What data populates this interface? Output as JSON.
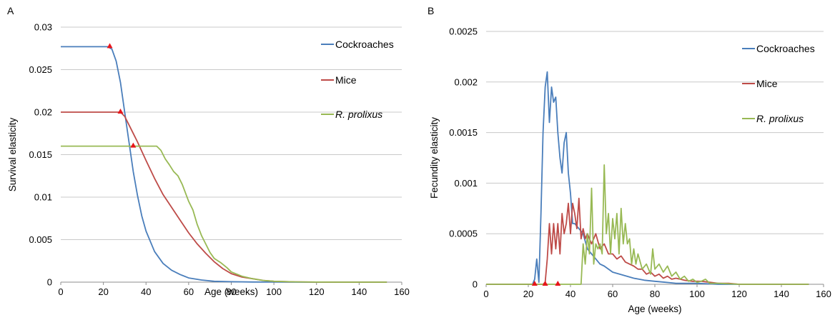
{
  "chart_data": [
    {
      "panel": "A",
      "type": "line",
      "xlabel": "Age (weeks)",
      "ylabel": "Survival elasticity",
      "xlim": [
        0,
        160
      ],
      "ylim": [
        0,
        0.03
      ],
      "xticks": [
        0,
        20,
        40,
        60,
        80,
        100,
        120,
        140,
        160
      ],
      "yticks": [
        0,
        0.005,
        0.01,
        0.015,
        0.02,
        0.025,
        0.03
      ],
      "ytick_labels": [
        "0",
        "0.005",
        "0.01",
        "0.015",
        "0.02",
        "0.025",
        "0.03"
      ],
      "grid": "horizontal",
      "legend_position": "right",
      "series": [
        {
          "name": "Cockroaches",
          "italic": false,
          "color": "#4a7ebb",
          "x": [
            0,
            22,
            24,
            26,
            28,
            30,
            32,
            34,
            36,
            38,
            40,
            44,
            48,
            52,
            56,
            60,
            66,
            72,
            80,
            90,
            100,
            110,
            120,
            130,
            140,
            153
          ],
          "y": [
            0.0277,
            0.0277,
            0.0274,
            0.026,
            0.0235,
            0.02,
            0.0165,
            0.013,
            0.0102,
            0.0078,
            0.006,
            0.0036,
            0.0022,
            0.0014,
            0.0009,
            0.0005,
            0.00025,
            0.0001,
            5e-05,
            2e-05,
            1e-05,
            0,
            0,
            0,
            0,
            0
          ],
          "marker": {
            "x": 23,
            "y": 0.0277
          }
        },
        {
          "name": "Mice",
          "italic": false,
          "color": "#be4b48",
          "x": [
            0,
            28,
            30,
            32,
            34,
            36,
            40,
            44,
            48,
            52,
            56,
            60,
            64,
            68,
            72,
            76,
            80,
            85,
            90,
            95,
            100,
            110,
            120,
            130,
            140,
            153
          ],
          "y": [
            0.02,
            0.02,
            0.0195,
            0.0185,
            0.0175,
            0.0165,
            0.0143,
            0.0122,
            0.0103,
            0.0088,
            0.0073,
            0.0058,
            0.0045,
            0.0034,
            0.0024,
            0.0016,
            0.001,
            0.0006,
            0.0004,
            0.0002,
            0.0001,
            3e-05,
            1e-05,
            0,
            0,
            0
          ],
          "marker": {
            "x": 28,
            "y": 0.02
          }
        },
        {
          "name": "R. prolixus",
          "italic": true,
          "color": "#98b954",
          "x": [
            0,
            45,
            47,
            49,
            51,
            53,
            55,
            57,
            60,
            62,
            64,
            66,
            68,
            70,
            72,
            75,
            78,
            80,
            85,
            90,
            95,
            100,
            110,
            120,
            130,
            140,
            153
          ],
          "y": [
            0.016,
            0.016,
            0.0155,
            0.0145,
            0.0138,
            0.013,
            0.0125,
            0.0115,
            0.0095,
            0.0085,
            0.0068,
            0.0055,
            0.0045,
            0.0035,
            0.0028,
            0.0023,
            0.0017,
            0.0012,
            0.0007,
            0.0004,
            0.0002,
            0.0001,
            3e-05,
            1e-05,
            0,
            0,
            0
          ],
          "marker": {
            "x": 34,
            "y": 0.016
          }
        }
      ]
    },
    {
      "panel": "B",
      "type": "line",
      "xlabel": "Age (weeks)",
      "ylabel": "Fecundity elasticity",
      "xlim": [
        0,
        160
      ],
      "ylim": [
        0,
        0.0025
      ],
      "xticks": [
        0,
        20,
        40,
        60,
        80,
        100,
        120,
        140,
        160
      ],
      "yticks": [
        0,
        0.0005,
        0.001,
        0.0015,
        0.002,
        0.0025
      ],
      "ytick_labels": [
        "0",
        "0.0005",
        "0.001",
        "0.0015",
        "0.002",
        "0.0025"
      ],
      "grid": "horizontal",
      "legend_position": "right",
      "series": [
        {
          "name": "Cockroaches",
          "italic": false,
          "color": "#4a7ebb",
          "x": [
            0,
            22,
            23,
            24,
            25,
            26,
            27,
            28,
            29,
            30,
            31,
            32,
            33,
            34,
            35,
            36,
            37,
            38,
            39,
            40,
            41,
            42,
            44,
            46,
            48,
            50,
            52,
            54,
            56,
            60,
            65,
            70,
            75,
            80,
            85,
            90,
            95,
            100,
            110,
            120,
            130,
            140,
            153
          ],
          "y": [
            0,
            0,
            5e-05,
            0.00025,
            2e-05,
            0.0007,
            0.0015,
            0.00195,
            0.0021,
            0.0016,
            0.00195,
            0.0018,
            0.00185,
            0.0015,
            0.00125,
            0.0011,
            0.0014,
            0.0015,
            0.0011,
            0.0009,
            0.0006,
            0.0006,
            0.00055,
            0.0005,
            0.00035,
            0.0003,
            0.00025,
            0.0002,
            0.00018,
            0.00012,
            9e-05,
            6e-05,
            4e-05,
            3e-05,
            2e-05,
            1e-05,
            1e-05,
            1e-05,
            0,
            0,
            0,
            0,
            0
          ],
          "marker": {
            "x": 23,
            "y": 0
          }
        },
        {
          "name": "Mice",
          "italic": false,
          "color": "#be4b48",
          "x": [
            0,
            27,
            28,
            29,
            30,
            31,
            32,
            33,
            34,
            35,
            36,
            37,
            38,
            39,
            40,
            41,
            42,
            43,
            44,
            45,
            46,
            47,
            48,
            50,
            52,
            54,
            56,
            58,
            60,
            62,
            64,
            66,
            68,
            70,
            72,
            74,
            76,
            78,
            80,
            82,
            84,
            86,
            88,
            90,
            94,
            98,
            102,
            106,
            110,
            115,
            120,
            130,
            140,
            153
          ],
          "y": [
            0,
            0,
            2e-05,
            0.00025,
            0.0006,
            0.0003,
            0.0006,
            0.00035,
            0.0006,
            0.0003,
            0.0007,
            0.0005,
            0.0006,
            0.0008,
            0.0005,
            0.0008,
            0.0007,
            0.00055,
            0.00085,
            0.00045,
            0.00055,
            0.00045,
            0.0005,
            0.0004,
            0.0005,
            0.00035,
            0.0004,
            0.0003,
            0.0003,
            0.00025,
            0.00028,
            0.00022,
            0.0002,
            0.00018,
            0.00015,
            0.00015,
            0.0001,
            0.00012,
            8e-05,
            0.0001,
            6e-05,
            8e-05,
            5e-05,
            6e-05,
            4e-05,
            3e-05,
            3e-05,
            2e-05,
            1e-05,
            1e-05,
            0,
            0,
            0,
            0
          ],
          "marker": {
            "x": 28,
            "y": 0
          }
        },
        {
          "name": "R. prolixus",
          "italic": true,
          "color": "#98b954",
          "x": [
            0,
            45,
            46,
            47,
            48,
            49,
            50,
            51,
            52,
            53,
            54,
            55,
            56,
            57,
            58,
            59,
            60,
            61,
            62,
            63,
            64,
            65,
            66,
            67,
            68,
            69,
            70,
            71,
            72,
            74,
            76,
            78,
            79,
            80,
            82,
            84,
            86,
            88,
            90,
            92,
            94,
            96,
            98,
            100,
            102,
            104,
            106,
            110,
            120,
            130,
            140,
            153
          ],
          "y": [
            0,
            0,
            0.0004,
            0.0002,
            0.0005,
            0.0003,
            0.00095,
            0.0002,
            0.0004,
            0.00035,
            0.0004,
            0.0003,
            0.00118,
            0.0005,
            0.0007,
            0.0003,
            0.00065,
            0.00045,
            0.0007,
            0.0003,
            0.00075,
            0.0004,
            0.0006,
            0.0004,
            0.00045,
            0.0002,
            0.00035,
            0.0002,
            0.0003,
            0.00015,
            0.0002,
            0.0001,
            0.00035,
            0.00015,
            0.0002,
            0.00012,
            0.00018,
            8e-05,
            0.00012,
            5e-05,
            8e-05,
            3e-05,
            5e-05,
            2e-05,
            3e-05,
            5e-05,
            1e-05,
            1e-05,
            0,
            0,
            0,
            0
          ],
          "marker": {
            "x": 34,
            "y": 0
          }
        }
      ]
    }
  ]
}
